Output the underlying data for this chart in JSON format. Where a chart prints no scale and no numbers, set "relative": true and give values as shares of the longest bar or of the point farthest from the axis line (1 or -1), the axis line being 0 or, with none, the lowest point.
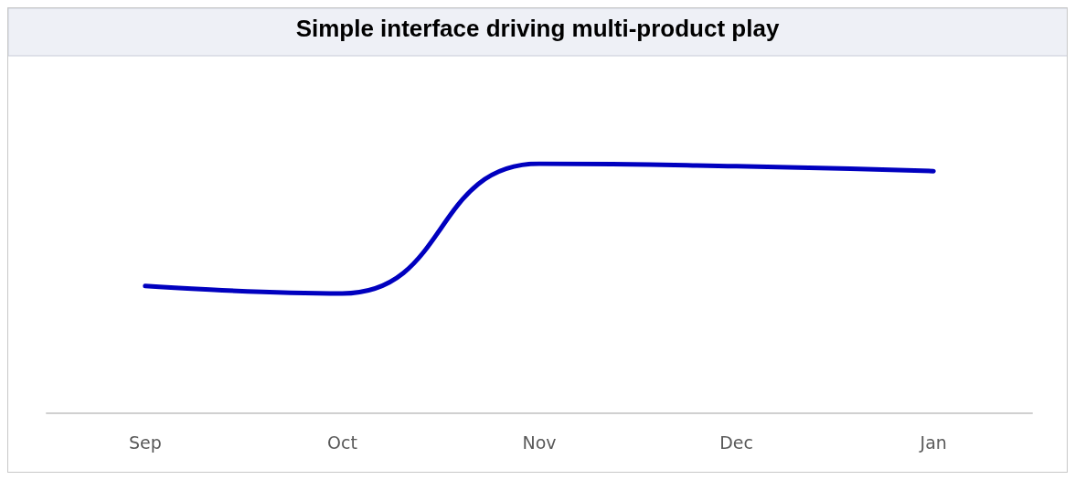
{
  "chart_data": {
    "type": "line",
    "title": "Simple interface driving multi-product play",
    "categories": [
      "Sep",
      "Oct",
      "Nov",
      "Dec",
      "Jan"
    ],
    "relative": true,
    "series": [
      {
        "color": "#0000bf",
        "values": [
          0.51,
          0.48,
          1,
          0.99,
          0.97
        ]
      }
    ],
    "marker": "none",
    "line_style": "solid"
  }
}
